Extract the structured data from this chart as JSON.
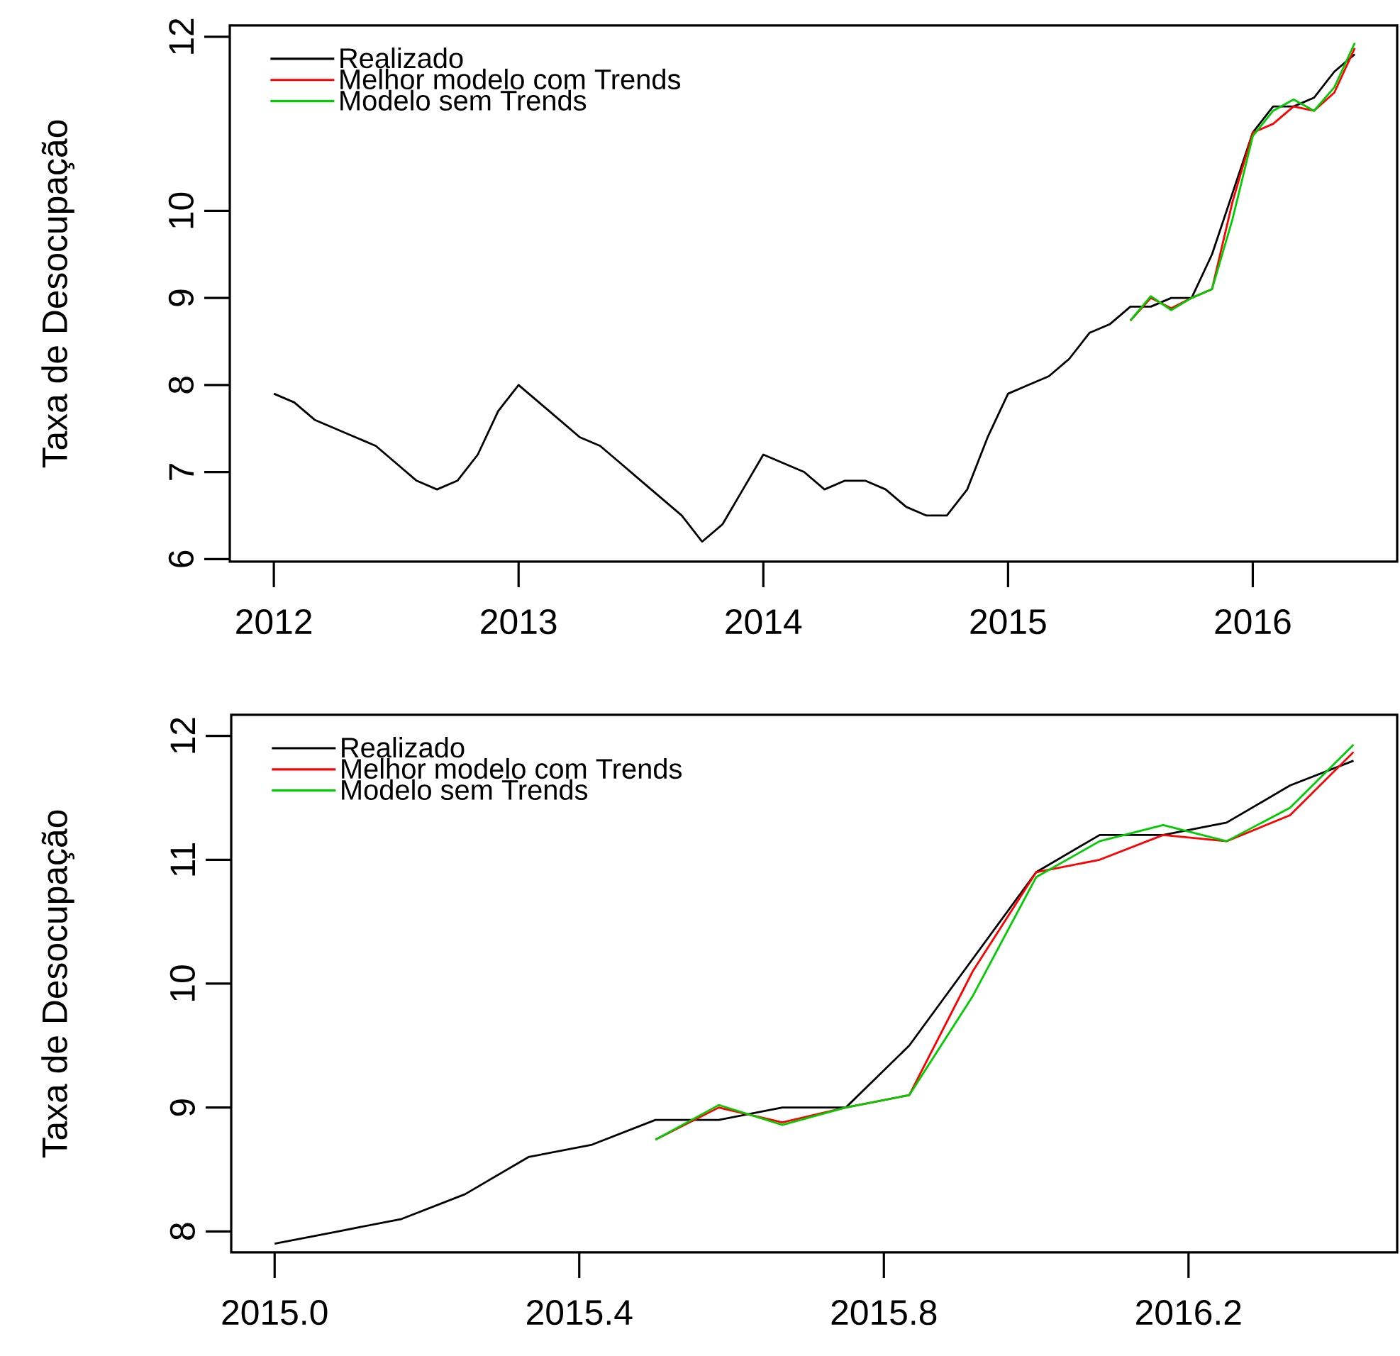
{
  "chart_data": [
    {
      "type": "line",
      "ylabel": "Taxa de Desocupação",
      "legend": "top left",
      "xlim": [
        2011.82,
        2016.59
      ],
      "ylim": [
        5.97,
        12.13
      ],
      "xticks": [
        2012,
        2013,
        2014,
        2015,
        2016
      ],
      "yticks": [
        6,
        7,
        8,
        9,
        10,
        12
      ],
      "series": [
        {
          "name": "Realizado",
          "color": "#000000",
          "x": [
            2012.0,
            2012.0833,
            2012.1667,
            2012.25,
            2012.3333,
            2012.4167,
            2012.5,
            2012.5833,
            2012.6667,
            2012.75,
            2012.8333,
            2012.9167,
            2013.0,
            2013.0833,
            2013.1667,
            2013.25,
            2013.3333,
            2013.4167,
            2013.5,
            2013.5833,
            2013.6667,
            2013.75,
            2013.8333,
            2013.9167,
            2014.0,
            2014.0833,
            2014.1667,
            2014.25,
            2014.3333,
            2014.4167,
            2014.5,
            2014.5833,
            2014.6667,
            2014.75,
            2014.8333,
            2014.9167,
            2015.0,
            2015.0833,
            2015.1667,
            2015.25,
            2015.3333,
            2015.4167,
            2015.5,
            2015.5833,
            2015.6667,
            2015.75,
            2015.8333,
            2015.9167,
            2016.0,
            2016.0833,
            2016.1667,
            2016.25,
            2016.3333,
            2016.4167
          ],
          "values": [
            7.9,
            7.8,
            7.6,
            7.5,
            7.4,
            7.3,
            7.1,
            6.9,
            6.8,
            6.9,
            7.2,
            7.7,
            8.0,
            7.8,
            7.6,
            7.4,
            7.3,
            7.1,
            6.9,
            6.7,
            6.5,
            6.2,
            6.4,
            6.8,
            7.2,
            7.1,
            7.0,
            6.8,
            6.9,
            6.9,
            6.8,
            6.6,
            6.5,
            6.5,
            6.8,
            7.4,
            7.9,
            8.0,
            8.1,
            8.3,
            8.6,
            8.7,
            8.9,
            8.9,
            9.0,
            9.0,
            9.5,
            10.2,
            10.9,
            11.2,
            11.2,
            11.3,
            11.6,
            11.8
          ]
        },
        {
          "name": "Melhor modelo com Trends",
          "color": "#ff0000",
          "x": [
            2015.5,
            2015.5833,
            2015.6667,
            2015.75,
            2015.8333,
            2015.9167,
            2016.0,
            2016.0833,
            2016.1667,
            2016.25,
            2016.3333,
            2016.4167
          ],
          "values": [
            8.74,
            9.0,
            8.88,
            9.0,
            9.1,
            10.1,
            10.9,
            11.0,
            11.2,
            11.15,
            11.36,
            11.87
          ]
        },
        {
          "name": "Modelo sem Trends",
          "color": "#00cd00",
          "x": [
            2015.5,
            2015.5833,
            2015.6667,
            2015.75,
            2015.8333,
            2015.9167,
            2016.0,
            2016.0833,
            2016.1667,
            2016.25,
            2016.3333,
            2016.4167
          ],
          "values": [
            8.74,
            9.02,
            8.86,
            9.0,
            9.1,
            9.9,
            10.86,
            11.15,
            11.28,
            11.15,
            11.42,
            11.93
          ]
        }
      ]
    },
    {
      "type": "line",
      "ylabel": "Taxa de Desocupação",
      "legend": "top left",
      "xlim": [
        2014.943,
        2016.474
      ],
      "ylim": [
        7.83,
        12.17
      ],
      "xticks": [
        {
          "value": 2015.0,
          "label": "2015.0"
        },
        {
          "value": 2015.4,
          "label": "2015.4"
        },
        {
          "value": 2015.8,
          "label": "2015.8"
        },
        {
          "value": 2016.2,
          "label": "2016.2"
        }
      ],
      "yticks": [
        8,
        9,
        10,
        11,
        12
      ],
      "series": [
        {
          "name": "Realizado",
          "color": "#000000",
          "x": [
            2015.0,
            2015.0833,
            2015.1667,
            2015.25,
            2015.3333,
            2015.4167,
            2015.5,
            2015.5833,
            2015.6667,
            2015.75,
            2015.8333,
            2015.9167,
            2016.0,
            2016.0833,
            2016.1667,
            2016.25,
            2016.3333,
            2016.4167
          ],
          "values": [
            7.9,
            8.0,
            8.1,
            8.3,
            8.6,
            8.7,
            8.9,
            8.9,
            9.0,
            9.0,
            9.5,
            10.2,
            10.9,
            11.2,
            11.2,
            11.3,
            11.6,
            11.8
          ]
        },
        {
          "name": "Melhor modelo com Trends",
          "color": "#ff0000",
          "x": [
            2015.5,
            2015.5833,
            2015.6667,
            2015.75,
            2015.8333,
            2015.9167,
            2016.0,
            2016.0833,
            2016.1667,
            2016.25,
            2016.3333,
            2016.4167
          ],
          "values": [
            8.74,
            9.0,
            8.88,
            9.0,
            9.1,
            10.1,
            10.9,
            11.0,
            11.2,
            11.15,
            11.36,
            11.87
          ]
        },
        {
          "name": "Modelo sem Trends",
          "color": "#00cd00",
          "x": [
            2015.5,
            2015.5833,
            2015.6667,
            2015.75,
            2015.8333,
            2015.9167,
            2016.0,
            2016.0833,
            2016.1667,
            2016.25,
            2016.3333,
            2016.4167
          ],
          "values": [
            8.74,
            9.02,
            8.86,
            9.0,
            9.1,
            9.9,
            10.86,
            11.15,
            11.28,
            11.15,
            11.42,
            11.93
          ]
        }
      ]
    }
  ]
}
